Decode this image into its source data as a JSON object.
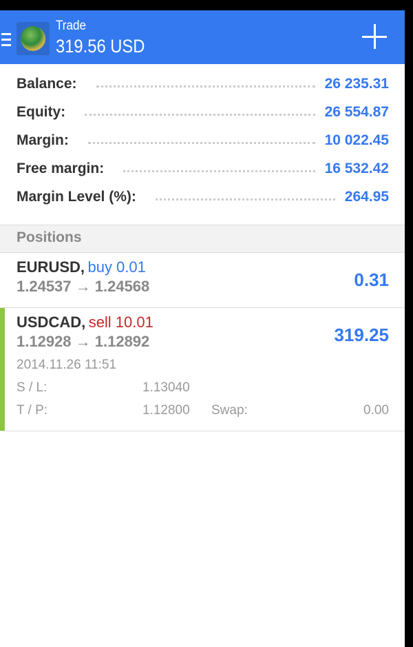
{
  "header": {
    "title": "Trade",
    "amount": "319.56 USD"
  },
  "summary": [
    {
      "label": "Balance:",
      "value": "26 235.31"
    },
    {
      "label": "Equity:",
      "value": "26 554.87"
    },
    {
      "label": "Margin:",
      "value": "10 022.45"
    },
    {
      "label": "Free margin:",
      "value": "16 532.42"
    },
    {
      "label": "Margin Level (%):",
      "value": "264.95"
    }
  ],
  "positions": {
    "heading": "Positions",
    "items": [
      {
        "symbol": "EURUSD,",
        "type": "buy 0.01",
        "prices": "1.24537 → 1.24568",
        "profit": "0.31"
      },
      {
        "symbol": "USDCAD,",
        "type": "sell 10.01",
        "prices": "1.12928 → 1.12892",
        "profit": "319.25",
        "time": "2014.11.26 11:51",
        "sl_label": "S / L:",
        "sl": "1.13040",
        "tp_label": "T / P:",
        "tp": "1.12800",
        "swap_label": "Swap:",
        "swap": "0.00"
      }
    ]
  },
  "colors": {
    "accent": "#3479ef",
    "buy": "#3479ef",
    "sell": "#c62828",
    "selected_bar": "#8dc63f"
  }
}
